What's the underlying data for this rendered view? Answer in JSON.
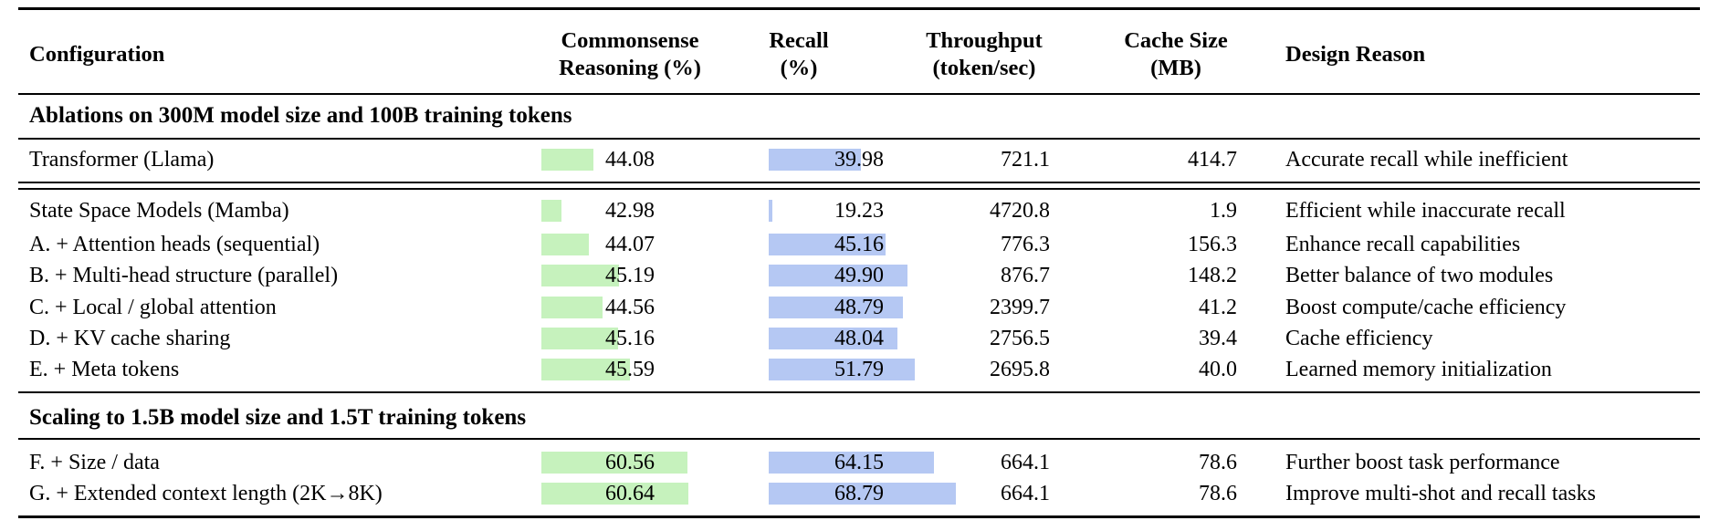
{
  "colors": {
    "commonsense_bar": "#c6f2bd",
    "recall_bar": "#b5c8f3"
  },
  "table": {
    "headers": {
      "config": "Configuration",
      "commonsense_line1": "Commonsense",
      "commonsense_line2": "Reasoning (%)",
      "recall_line1": "Recall",
      "recall_line2": "(%)",
      "throughput_line1": "Throughput",
      "throughput_line2": "(token/sec)",
      "cache_line1": "Cache Size",
      "cache_line2": "(MB)",
      "design": "Design Reason"
    },
    "sections": [
      {
        "title": "Ablations on 300M model size and 100B training tokens"
      },
      {
        "title": "Scaling to 1.5B model size and 1.5T training tokens"
      }
    ],
    "rows": [
      {
        "config": "Transformer (Llama)",
        "cr": "44.08",
        "cr_bar": 57,
        "recall": "39.98",
        "recall_bar": 101,
        "throughput": "721.1",
        "cache": "414.7",
        "reason": "Accurate recall while inefficient"
      },
      {
        "config": "State Space Models (Mamba)",
        "cr": "42.98",
        "cr_bar": 22,
        "recall": "19.23",
        "recall_bar": 4,
        "throughput": "4720.8",
        "cache": "1.9",
        "reason": "Efficient while inaccurate recall"
      },
      {
        "config": "A. + Attention heads (sequential)",
        "cr": "44.07",
        "cr_bar": 52,
        "recall": "45.16",
        "recall_bar": 128,
        "throughput": "776.3",
        "cache": "156.3",
        "reason": "Enhance recall capabilities"
      },
      {
        "config": "B. + Multi-head structure (parallel)",
        "cr": "45.19",
        "cr_bar": 85,
        "recall": "49.90",
        "recall_bar": 152,
        "throughput": "876.7",
        "cache": "148.2",
        "reason": "Better balance of two modules"
      },
      {
        "config": "C. + Local / global attention",
        "cr": "44.56",
        "cr_bar": 67,
        "recall": "48.79",
        "recall_bar": 147,
        "throughput": "2399.7",
        "cache": "41.2",
        "reason": "Boost compute/cache efficiency"
      },
      {
        "config": "D. + KV cache sharing",
        "cr": "45.16",
        "cr_bar": 84,
        "recall": "48.04",
        "recall_bar": 141,
        "throughput": "2756.5",
        "cache": "39.4",
        "reason": "Cache efficiency"
      },
      {
        "config": "E. + Meta tokens",
        "cr": "45.59",
        "cr_bar": 97,
        "recall": "51.79",
        "recall_bar": 160,
        "throughput": "2695.8",
        "cache": "40.0",
        "reason": "Learned memory initialization"
      },
      {
        "config": "F. + Size / data",
        "cr": "60.56",
        "cr_bar": 160,
        "recall": "64.15",
        "recall_bar": 181,
        "throughput": "664.1",
        "cache": "78.6",
        "reason": "Further boost task performance"
      },
      {
        "config": "G. + Extended context length (2K→8K)",
        "cr": "60.64",
        "cr_bar": 161,
        "recall": "68.79",
        "recall_bar": 205,
        "throughput": "664.1",
        "cache": "78.6",
        "reason": "Improve multi-shot and recall tasks"
      }
    ]
  },
  "chart_data": {
    "type": "table",
    "title": "Ablation table with in-cell data bars",
    "columns": [
      "Configuration",
      "Commonsense Reasoning (%)",
      "Recall (%)",
      "Throughput (token/sec)",
      "Cache Size (MB)",
      "Design Reason"
    ],
    "series": [
      {
        "name": "Commonsense Reasoning (%)",
        "values": [
          44.08,
          42.98,
          44.07,
          45.19,
          44.56,
          45.16,
          45.59,
          60.56,
          60.64
        ]
      },
      {
        "name": "Recall (%)",
        "values": [
          39.98,
          19.23,
          45.16,
          49.9,
          48.79,
          48.04,
          51.79,
          64.15,
          68.79
        ]
      },
      {
        "name": "Throughput (token/sec)",
        "values": [
          721.1,
          4720.8,
          776.3,
          876.7,
          2399.7,
          2756.5,
          2695.8,
          664.1,
          664.1
        ]
      },
      {
        "name": "Cache Size (MB)",
        "values": [
          414.7,
          1.9,
          156.3,
          148.2,
          41.2,
          39.4,
          40.0,
          78.6,
          78.6
        ]
      }
    ],
    "categories": [
      "Transformer (Llama)",
      "State Space Models (Mamba)",
      "A. + Attention heads (sequential)",
      "B. + Multi-head structure (parallel)",
      "C. + Local / global attention",
      "D. + KV cache sharing",
      "E. + Meta tokens",
      "F. + Size / data",
      "G. + Extended context length (2K→8K)"
    ]
  }
}
